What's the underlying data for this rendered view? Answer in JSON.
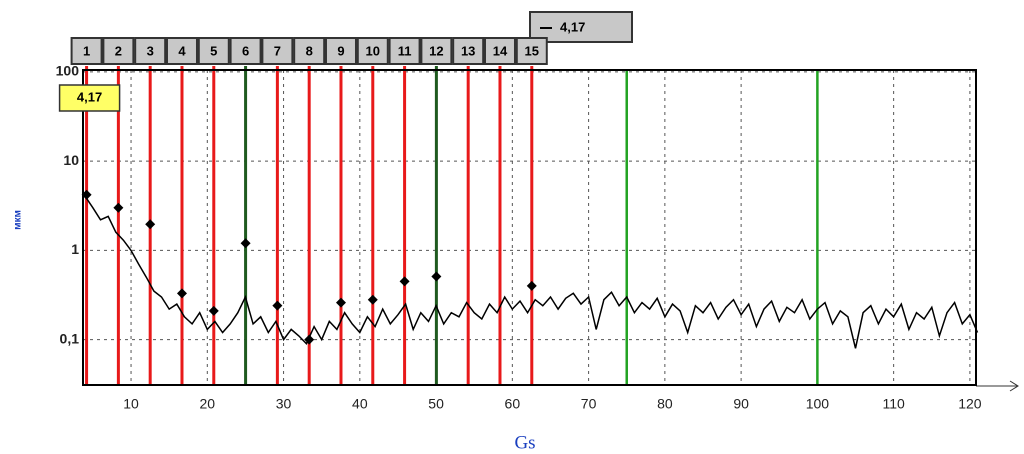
{
  "chart_data": {
    "type": "line",
    "x_label": "Gs",
    "y_label": "мкм",
    "xlim": [
      3.7,
      120.8
    ],
    "ylim": [
      0.031,
      105
    ],
    "log_y": true,
    "grid": true,
    "xticks": [
      10,
      20,
      30,
      40,
      50,
      60,
      70,
      80,
      90,
      100,
      110,
      120
    ],
    "yticks": [
      {
        "value": 0.1,
        "label": "0,1"
      },
      1,
      10,
      100
    ],
    "series": [
      {
        "color": "#000000",
        "x": [
          4,
          5,
          6,
          7,
          8,
          9,
          10,
          11,
          12,
          13,
          14,
          15,
          16,
          17,
          18,
          19,
          20,
          21,
          22,
          23,
          24,
          25,
          26,
          27,
          28,
          29,
          30,
          31,
          32,
          33,
          34,
          35,
          36,
          37,
          38,
          39,
          40,
          41,
          42,
          43,
          44,
          45,
          46,
          47,
          48,
          49,
          50,
          51,
          52,
          53,
          54,
          55,
          56,
          57,
          58,
          59,
          60,
          61,
          62,
          63,
          64,
          65,
          66,
          67,
          68,
          69,
          70,
          71,
          72,
          73,
          74,
          75,
          76,
          77,
          78,
          79,
          80,
          81,
          82,
          83,
          84,
          85,
          86,
          87,
          88,
          89,
          90,
          91,
          92,
          93,
          94,
          95,
          96,
          97,
          98,
          99,
          100,
          101,
          102,
          103,
          104,
          105,
          106,
          107,
          108,
          109,
          110,
          111,
          112,
          113,
          114,
          115,
          116,
          117,
          118,
          119,
          120,
          121
        ],
        "values": [
          4.0,
          3.0,
          2.2,
          2.4,
          1.6,
          1.3,
          1.0,
          0.7,
          0.5,
          0.35,
          0.3,
          0.22,
          0.25,
          0.18,
          0.15,
          0.2,
          0.13,
          0.16,
          0.12,
          0.15,
          0.2,
          0.3,
          0.15,
          0.18,
          0.12,
          0.16,
          0.1,
          0.13,
          0.11,
          0.09,
          0.14,
          0.1,
          0.16,
          0.13,
          0.2,
          0.15,
          0.12,
          0.18,
          0.14,
          0.22,
          0.15,
          0.19,
          0.25,
          0.13,
          0.2,
          0.16,
          0.24,
          0.15,
          0.2,
          0.18,
          0.26,
          0.2,
          0.17,
          0.25,
          0.2,
          0.3,
          0.22,
          0.27,
          0.2,
          0.28,
          0.24,
          0.3,
          0.22,
          0.29,
          0.33,
          0.25,
          0.3,
          0.13,
          0.28,
          0.34,
          0.24,
          0.3,
          0.2,
          0.26,
          0.22,
          0.29,
          0.18,
          0.25,
          0.21,
          0.12,
          0.24,
          0.2,
          0.26,
          0.17,
          0.23,
          0.28,
          0.19,
          0.25,
          0.14,
          0.22,
          0.27,
          0.16,
          0.23,
          0.2,
          0.28,
          0.17,
          0.22,
          0.26,
          0.15,
          0.21,
          0.18,
          0.08,
          0.2,
          0.24,
          0.15,
          0.22,
          0.18,
          0.25,
          0.13,
          0.2,
          0.17,
          0.23,
          0.11,
          0.2,
          0.26,
          0.15,
          0.19,
          0.12
        ]
      }
    ],
    "harmonics": {
      "labels": [
        "1",
        "2",
        "3",
        "4",
        "5",
        "6",
        "7",
        "8",
        "9",
        "10",
        "11",
        "12",
        "13",
        "14",
        "15"
      ],
      "x": [
        4.17,
        8.34,
        12.51,
        16.68,
        20.85,
        25.02,
        29.19,
        33.36,
        37.53,
        41.7,
        45.87,
        50.04,
        54.21,
        58.38,
        62.55
      ],
      "colors": [
        "#e8191a",
        "#e8191a",
        "#e8191a",
        "#e8191a",
        "#e8191a",
        "#1f5a1f",
        "#e8191a",
        "#e8191a",
        "#e8191a",
        "#e8191a",
        "#e8191a",
        "#1f5a1f",
        "#e8191a",
        "#e8191a",
        "#e8191a"
      ],
      "peaks": [
        4.2,
        3.0,
        1.96,
        0.33,
        0.21,
        1.2,
        0.24,
        0.1,
        0.26,
        0.28,
        0.45,
        0.51,
        null,
        null,
        0.4
      ]
    },
    "reference_lines": {
      "x": [
        75,
        100
      ],
      "color": "#22a322"
    },
    "cursor": {
      "x": 4.17,
      "label": "4,17"
    }
  }
}
